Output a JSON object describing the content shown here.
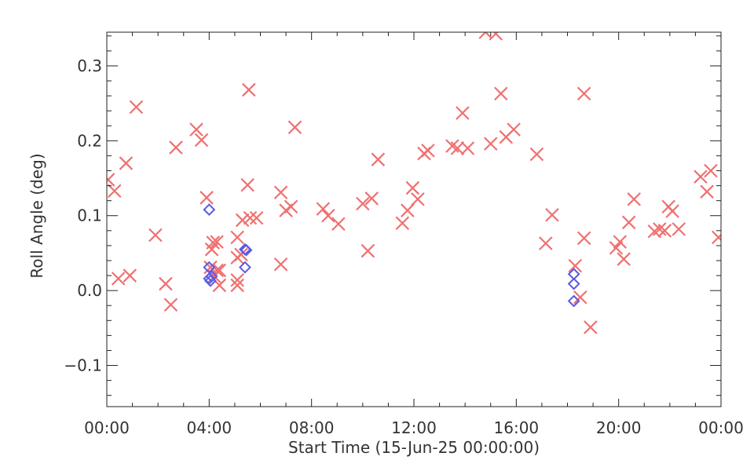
{
  "chart_data": {
    "type": "scatter",
    "title": "",
    "xlabel": "Start Time (15-Jun-25 00:00:00)",
    "ylabel": "Roll Angle (deg)",
    "xlim": [
      0,
      24
    ],
    "ylim": [
      -0.155,
      0.345
    ],
    "x_ticks": [
      0,
      4,
      8,
      12,
      16,
      20,
      24
    ],
    "x_tick_labels": [
      "00:00",
      "04:00",
      "08:00",
      "12:00",
      "16:00",
      "20:00",
      "00:00"
    ],
    "x_unit": "hours after 15-Jun-25 00:00:00",
    "y_ticks": [
      -0.1,
      0.0,
      0.1,
      0.2,
      0.3
    ],
    "y_tick_labels": [
      "−0.1",
      "0.0",
      "0.1",
      "0.2",
      "0.3"
    ],
    "grid": false,
    "series": [
      {
        "marker": "x",
        "color": "#f07070",
        "points": [
          [
            0.05,
            0.148
          ],
          [
            0.3,
            0.133
          ],
          [
            0.45,
            0.016
          ],
          [
            0.75,
            0.17
          ],
          [
            0.9,
            0.02
          ],
          [
            1.15,
            0.245
          ],
          [
            1.9,
            0.074
          ],
          [
            2.3,
            0.009
          ],
          [
            2.5,
            -0.019
          ],
          [
            2.7,
            0.191
          ],
          [
            3.5,
            0.215
          ],
          [
            3.7,
            0.201
          ],
          [
            3.9,
            0.124
          ],
          [
            4.05,
            0.031
          ],
          [
            4.1,
            0.055
          ],
          [
            4.15,
            0.064
          ],
          [
            4.2,
            0.019
          ],
          [
            4.3,
            0.027
          ],
          [
            4.3,
            0.065
          ],
          [
            4.4,
            0.007
          ],
          [
            4.4,
            0.027
          ],
          [
            5.1,
            0.007
          ],
          [
            5.1,
            0.014
          ],
          [
            5.1,
            0.044
          ],
          [
            5.1,
            0.071
          ],
          [
            5.25,
            0.048
          ],
          [
            5.3,
            0.094
          ],
          [
            5.5,
            0.141
          ],
          [
            5.55,
            0.268
          ],
          [
            5.6,
            0.097
          ],
          [
            5.85,
            0.097
          ],
          [
            6.8,
            0.035
          ],
          [
            6.8,
            0.131
          ],
          [
            7.0,
            0.107
          ],
          [
            7.2,
            0.112
          ],
          [
            7.35,
            0.218
          ],
          [
            8.45,
            0.109
          ],
          [
            8.65,
            0.1
          ],
          [
            9.05,
            0.089
          ],
          [
            10.0,
            0.116
          ],
          [
            10.2,
            0.053
          ],
          [
            10.35,
            0.123
          ],
          [
            10.6,
            0.175
          ],
          [
            11.55,
            0.09
          ],
          [
            11.75,
            0.107
          ],
          [
            11.95,
            0.137
          ],
          [
            12.15,
            0.122
          ],
          [
            12.4,
            0.183
          ],
          [
            12.55,
            0.187
          ],
          [
            13.5,
            0.193
          ],
          [
            13.7,
            0.19
          ],
          [
            13.9,
            0.237
          ],
          [
            14.1,
            0.19
          ],
          [
            14.8,
            0.345
          ],
          [
            15.0,
            0.196
          ],
          [
            15.2,
            0.343
          ],
          [
            15.4,
            0.263
          ],
          [
            15.6,
            0.205
          ],
          [
            15.9,
            0.215
          ],
          [
            16.8,
            0.182
          ],
          [
            17.15,
            0.063
          ],
          [
            17.4,
            0.101
          ],
          [
            18.3,
            0.033
          ],
          [
            18.5,
            -0.009
          ],
          [
            18.65,
            0.07
          ],
          [
            18.65,
            0.263
          ],
          [
            18.9,
            -0.049
          ],
          [
            19.9,
            0.057
          ],
          [
            20.05,
            0.065
          ],
          [
            20.2,
            0.042
          ],
          [
            20.4,
            0.091
          ],
          [
            20.6,
            0.122
          ],
          [
            21.4,
            0.079
          ],
          [
            21.6,
            0.082
          ],
          [
            21.8,
            0.08
          ],
          [
            21.95,
            0.112
          ],
          [
            22.1,
            0.106
          ],
          [
            22.35,
            0.082
          ],
          [
            23.2,
            0.152
          ],
          [
            23.45,
            0.132
          ],
          [
            23.6,
            0.16
          ],
          [
            23.9,
            0.071
          ]
        ]
      },
      {
        "marker": "diamond",
        "color": "#5a5ae6",
        "points": [
          [
            4.0,
            0.108
          ],
          [
            4.0,
            0.031
          ],
          [
            4.0,
            0.016
          ],
          [
            4.05,
            0.013
          ],
          [
            4.1,
            0.019
          ],
          [
            5.4,
            0.055
          ],
          [
            5.45,
            0.054
          ],
          [
            5.4,
            0.031
          ],
          [
            18.25,
            0.022
          ],
          [
            18.25,
            0.009
          ],
          [
            18.25,
            -0.014
          ]
        ]
      }
    ]
  }
}
